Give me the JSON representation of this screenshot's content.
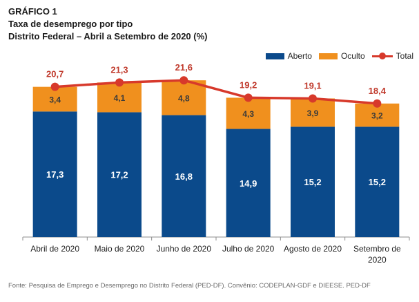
{
  "figure": {
    "label": "GRÁFICO 1",
    "title": "Taxa de desemprego por tipo",
    "subtitle": "Distrito Federal – Abril a Setembro de 2020 (%)",
    "source": "Fonte: Pesquisa de Emprego e Desemprego no Distrito Federal (PED-DF). Convênio: CODEPLAN-GDF e DIEESE. PED-DF"
  },
  "colors": {
    "aberto": "#0b4a8b",
    "oculto": "#f0901e",
    "total": "#d7392b",
    "total_label": "#c0392b"
  },
  "chart_data": {
    "type": "bar",
    "stacked": true,
    "categories": [
      "Abril de 2020",
      "Maio de 2020",
      "Junho de 2020",
      "Julho de 2020",
      "Agosto de 2020",
      "Setembro de 2020"
    ],
    "series": [
      {
        "name": "Aberto",
        "values": [
          17.3,
          17.2,
          16.8,
          14.9,
          15.2,
          15.2
        ],
        "labels": [
          "17,3",
          "17,2",
          "16,8",
          "14,9",
          "15,2",
          "15,2"
        ]
      },
      {
        "name": "Oculto",
        "values": [
          3.4,
          4.1,
          4.8,
          4.3,
          3.9,
          3.2
        ],
        "labels": [
          "3,4",
          "4,1",
          "4,8",
          "4,3",
          "3,9",
          "3,2"
        ]
      }
    ],
    "line_series": {
      "name": "Total",
      "values": [
        20.7,
        21.3,
        21.6,
        19.2,
        19.1,
        18.4
      ],
      "labels": [
        "20,7",
        "21,3",
        "21,6",
        "19,2",
        "19,1",
        "18,4"
      ]
    },
    "ylim": [
      0,
      22
    ],
    "legend_position": "top-right",
    "grid": false,
    "xlabel": "",
    "ylabel": ""
  }
}
